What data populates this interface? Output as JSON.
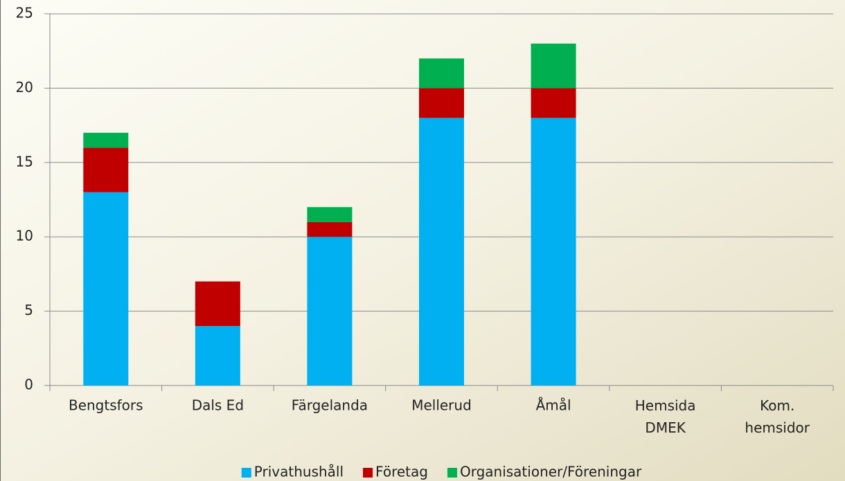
{
  "chart_data": {
    "type": "stacked_bar",
    "categories": [
      "Bengtsfors",
      "Dals Ed",
      "Färgelanda",
      "Mellerud",
      "Åmål",
      "Hemsida\nDMEK",
      "Kom.\nhemsidor"
    ],
    "series": [
      {
        "name": "Privathushåll",
        "color": "#00b0f0",
        "values": [
          13,
          4,
          10,
          18,
          18,
          null,
          null
        ]
      },
      {
        "name": "Företag",
        "color": "#c00000",
        "values": [
          3,
          3,
          1,
          2,
          2,
          null,
          null
        ]
      },
      {
        "name": "Organisationer/Föreningar",
        "color": "#00b050",
        "values": [
          1,
          0,
          1,
          2,
          3,
          null,
          null
        ]
      }
    ],
    "ylim": [
      0,
      25
    ],
    "yticks": [
      0,
      5,
      10,
      15,
      20,
      25
    ],
    "grid": true,
    "legend": "bottom"
  }
}
